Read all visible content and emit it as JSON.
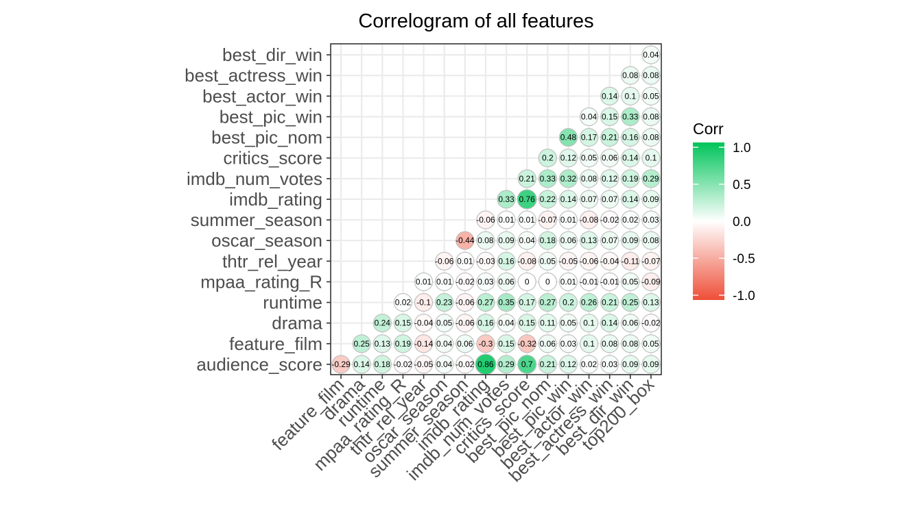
{
  "chart_data": {
    "type": "heatmap",
    "title": "Correlogram of all features",
    "method": "circle",
    "layout": "lower-triangle",
    "row_labels": [
      "audience_score",
      "feature_film",
      "drama",
      "runtime",
      "mpaa_rating_R",
      "thtr_rel_year",
      "oscar_season",
      "summer_season",
      "imdb_rating",
      "imdb_num_votes",
      "critics_score",
      "best_pic_nom",
      "best_pic_win",
      "best_actor_win",
      "best_actress_win",
      "best_dir_win"
    ],
    "col_labels": [
      "feature_film",
      "drama",
      "runtime",
      "mpaa_rating_R",
      "thtr_rel_year",
      "oscar_season",
      "summer_season",
      "imdb_rating",
      "imdb_num_votes",
      "critics_score",
      "best_pic_nom",
      "best_pic_win",
      "best_actor_win",
      "best_actress_win",
      "best_dir_win",
      "top200_box"
    ],
    "cell_labels": [
      [
        "-0.29",
        "0.14",
        "0.18",
        "-0.02",
        "-0.05",
        "0.04",
        "-0.02",
        "0.86",
        "0.29",
        "0.7",
        "0.21",
        "0.12",
        "0.02",
        "0.03",
        "0.09",
        "0.09"
      ],
      [
        null,
        "0.25",
        "0.13",
        "0.19",
        "-0.14",
        "0.04",
        "0.06",
        "-0.3",
        "0.15",
        "-0.32",
        "0.06",
        "0.03",
        "0.1",
        "0.08",
        "0.08",
        "0.05"
      ],
      [
        null,
        null,
        "0.24",
        "0.15",
        "-0.04",
        "0.05",
        "-0.06",
        "0.16",
        "0.04",
        "0.15",
        "0.11",
        "0.05",
        "0.1",
        "0.14",
        "0.06",
        "-0.02"
      ],
      [
        null,
        null,
        null,
        "0.02",
        "-0.1",
        "0.23",
        "-0.06",
        "0.27",
        "0.35",
        "0.17",
        "0.27",
        "0.2",
        "0.26",
        "0.21",
        "0.25",
        "0.13"
      ],
      [
        null,
        null,
        null,
        null,
        "0.01",
        "0.01",
        "-0.02",
        "0.03",
        "0.06",
        "0",
        "0",
        "0.01",
        "-0.01",
        "-0.01",
        "0.05",
        "-0.09"
      ],
      [
        null,
        null,
        null,
        null,
        null,
        "-0.06",
        "0.01",
        "-0.03",
        "0.16",
        "-0.08",
        "0.05",
        "-0.05",
        "-0.06",
        "-0.04",
        "-0.11",
        "-0.07"
      ],
      [
        null,
        null,
        null,
        null,
        null,
        null,
        "-0.44",
        "0.08",
        "0.09",
        "0.04",
        "0.18",
        "0.06",
        "0.13",
        "0.07",
        "0.09",
        "0.08"
      ],
      [
        null,
        null,
        null,
        null,
        null,
        null,
        null,
        "-0.06",
        "0.01",
        "0.01",
        "-0.07",
        "0.01",
        "-0.08",
        "-0.02",
        "0.02",
        "0.03"
      ],
      [
        null,
        null,
        null,
        null,
        null,
        null,
        null,
        null,
        "0.33",
        "0.76",
        "0.22",
        "0.14",
        "0.07",
        "0.07",
        "0.14",
        "0.09"
      ],
      [
        null,
        null,
        null,
        null,
        null,
        null,
        null,
        null,
        null,
        "0.21",
        "0.33",
        "0.32",
        "0.08",
        "0.12",
        "0.19",
        "0.29"
      ],
      [
        null,
        null,
        null,
        null,
        null,
        null,
        null,
        null,
        null,
        null,
        "0.2",
        "0.12",
        "0.05",
        "0.06",
        "0.14",
        "0.1"
      ],
      [
        null,
        null,
        null,
        null,
        null,
        null,
        null,
        null,
        null,
        null,
        null,
        "0.48",
        "0.17",
        "0.21",
        "0.16",
        "0.08"
      ],
      [
        null,
        null,
        null,
        null,
        null,
        null,
        null,
        null,
        null,
        null,
        null,
        null,
        "0.04",
        "0.15",
        "0.33",
        "0.08"
      ],
      [
        null,
        null,
        null,
        null,
        null,
        null,
        null,
        null,
        null,
        null,
        null,
        null,
        null,
        "0.14",
        "0.1",
        "0.05"
      ],
      [
        null,
        null,
        null,
        null,
        null,
        null,
        null,
        null,
        null,
        null,
        null,
        null,
        null,
        null,
        "0.08",
        "0.08"
      ],
      [
        null,
        null,
        null,
        null,
        null,
        null,
        null,
        null,
        null,
        null,
        null,
        null,
        null,
        null,
        null,
        "0.04"
      ]
    ],
    "legend": {
      "title": "Corr",
      "placement": "right",
      "ticks": [
        "1.0",
        "0.5",
        "0.0",
        "-0.5",
        "-1.0"
      ],
      "tick_values": [
        1.0,
        0.5,
        0.0,
        -0.5,
        -1.0
      ],
      "range": [
        -1.0,
        1.0
      ]
    },
    "colors": {
      "high": "#00c45a",
      "mid": "#ffffff",
      "low": "#ee4f38",
      "grid": "#ebebeb",
      "border": "#333333",
      "circle_outline": "#bdbdbd"
    },
    "grid": true
  }
}
